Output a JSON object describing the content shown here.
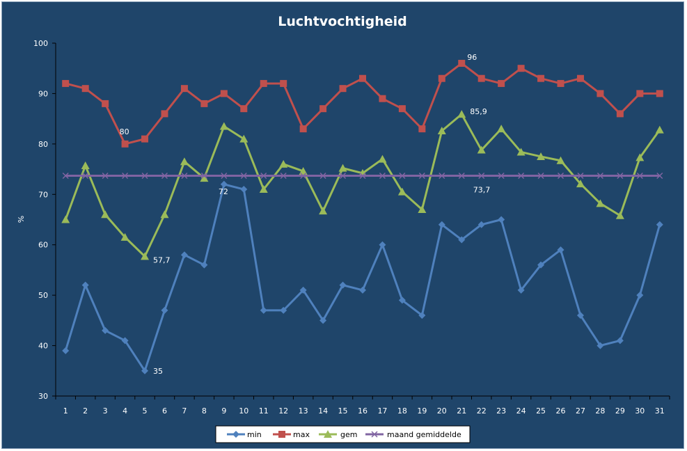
{
  "chart_data": {
    "type": "line",
    "title": "Luchtvochtigheid",
    "xlabel": "",
    "ylabel": "%",
    "ylim": [
      30,
      100
    ],
    "yticks": [
      30,
      40,
      50,
      60,
      70,
      80,
      90,
      100
    ],
    "categories": [
      "1",
      "2",
      "3",
      "4",
      "5",
      "6",
      "7",
      "8",
      "9",
      "10",
      "11",
      "12",
      "13",
      "14",
      "15",
      "16",
      "17",
      "18",
      "19",
      "20",
      "21",
      "22",
      "23",
      "24",
      "25",
      "26",
      "27",
      "28",
      "29",
      "30",
      "31"
    ],
    "grid": false,
    "legend": "bottom",
    "series": [
      {
        "name": "min",
        "color": "#4f81bd",
        "marker": "diamond",
        "values": [
          39,
          52,
          43,
          41,
          35,
          47,
          58,
          56,
          72,
          71,
          47,
          47,
          51,
          45,
          52,
          51,
          60,
          49,
          46,
          64,
          61,
          64,
          65,
          51,
          56,
          59,
          46,
          40,
          41,
          50,
          64
        ]
      },
      {
        "name": "max",
        "color": "#c0504d",
        "marker": "square",
        "values": [
          92,
          91,
          88,
          80,
          81,
          86,
          91,
          88,
          90,
          87,
          92,
          92,
          83,
          87,
          91,
          93,
          89,
          87,
          83,
          93,
          96,
          93,
          92,
          95,
          93,
          92,
          93,
          90,
          86,
          90,
          90
        ]
      },
      {
        "name": "gem",
        "color": "#9bbb59",
        "marker": "triangle",
        "values": [
          65,
          75.7,
          66,
          61.5,
          57.7,
          66,
          76.5,
          73.2,
          83.5,
          81,
          71,
          76,
          74.6,
          66.7,
          75.2,
          74.2,
          77,
          70.5,
          67,
          82.6,
          85.9,
          78.8,
          83,
          78.4,
          77.5,
          76.7,
          72.1,
          68.2,
          65.8,
          77.3,
          82.8
        ]
      },
      {
        "name": "maand gemiddelde",
        "color": "#8064a2",
        "marker": "x",
        "values": [
          73.7,
          73.7,
          73.7,
          73.7,
          73.7,
          73.7,
          73.7,
          73.7,
          73.7,
          73.7,
          73.7,
          73.7,
          73.7,
          73.7,
          73.7,
          73.7,
          73.7,
          73.7,
          73.7,
          73.7,
          73.7,
          73.7,
          73.7,
          73.7,
          73.7,
          73.7,
          73.7,
          73.7,
          73.7,
          73.7,
          73.7
        ]
      }
    ],
    "annotations": [
      {
        "series": "max",
        "x": "21",
        "text": "96"
      },
      {
        "series": "max",
        "x": "4",
        "text": "80"
      },
      {
        "series": "gem",
        "x": "21",
        "text": "85,9"
      },
      {
        "series": "gem",
        "x": "5",
        "text": "57,7"
      },
      {
        "series": "min",
        "x": "9",
        "text": "72"
      },
      {
        "series": "min",
        "x": "5",
        "text": "35"
      },
      {
        "series": "maand gemiddelde",
        "x": "22",
        "text": "73,7"
      }
    ]
  }
}
